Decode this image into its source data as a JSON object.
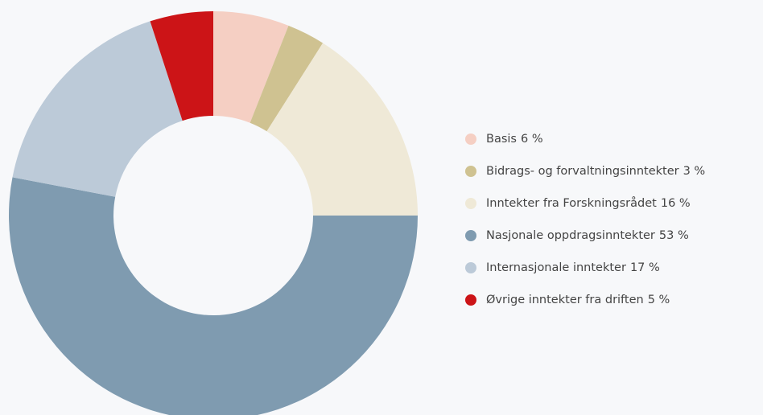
{
  "chart_data": {
    "type": "donut",
    "categories": [
      "Basis",
      "Bidrags- og forvaltningsinntekter",
      "Inntekter fra Forskningsrådet",
      "Nasjonale oppdragsinntekter",
      "Internasjonale inntekter",
      "Øvrige inntekter fra driften"
    ],
    "values": [
      6,
      3,
      16,
      53,
      17,
      5
    ],
    "value_labels": [
      "6 %",
      "3 %",
      "16 %",
      "53 %",
      "17 %",
      "5 %"
    ],
    "colors": [
      "#f5cfc3",
      "#cfc291",
      "#efe9d7",
      "#7f9bb0",
      "#bccad8",
      "#cc1417"
    ],
    "legend": "right"
  }
}
